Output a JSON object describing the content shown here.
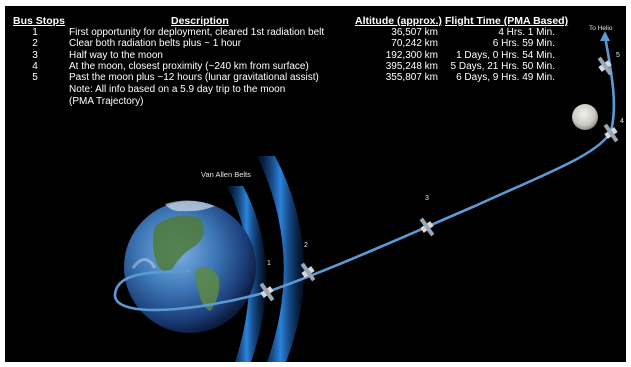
{
  "headers": {
    "bus_stops": "Bus Stops",
    "description": "Description",
    "altitude": "Altitude (approx.)",
    "flight_time": "Flight Time (PMA Based)"
  },
  "rows": [
    {
      "stop": "1",
      "description": "First opportunity for deployment, cleared 1st radiation belt",
      "altitude": "36,507 km",
      "flight_time": "4 Hrs.  1 Min."
    },
    {
      "stop": "2",
      "description": "Clear both radiation belts plus ~ 1 hour",
      "altitude": "70,242 km",
      "flight_time": "6 Hrs. 59 Min."
    },
    {
      "stop": "3",
      "description": "Half way to the moon",
      "altitude": "192,300 km",
      "flight_time": "1 Days,  0 Hrs. 54 Min."
    },
    {
      "stop": "4",
      "description": "At the moon, closest proximity (~240 km from surface)",
      "altitude": "395,248 km",
      "flight_time": "5 Days, 21 Hrs. 50 Min."
    },
    {
      "stop": "5",
      "description": "Past the moon plus ~12 hours (lunar gravitational assist)",
      "altitude": "355,807 km",
      "flight_time": "6 Days,  9 Hrs. 49 Min."
    }
  ],
  "note_line1": "Note: All info based on a 5.9 day trip to the moon",
  "note_line2": "(PMA Trajectory)",
  "labels": {
    "van_allen": "Van Allen Belts",
    "to_helio": "To Helio",
    "stop1": "1",
    "stop2": "2",
    "stop3": "3",
    "stop4": "4",
    "stop5": "5"
  },
  "colors": {
    "background": "#000000",
    "trajectory": "#5b9bd5",
    "belts": "#2f7fd8",
    "text": "#ffffff"
  }
}
